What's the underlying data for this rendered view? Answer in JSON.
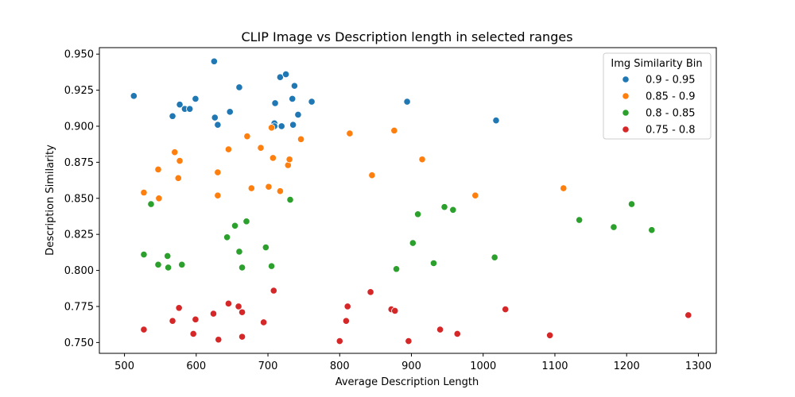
{
  "chart_data": {
    "type": "scatter",
    "title": "CLIP Image vs Description length in selected ranges",
    "xlabel": "Average Description Length",
    "ylabel": "Description Similarity",
    "xlim": [
      465,
      1325
    ],
    "ylim": [
      0.7425,
      0.9545
    ],
    "xticks": [
      500,
      600,
      700,
      800,
      900,
      1000,
      1100,
      1200,
      1300
    ],
    "yticks": [
      0.75,
      0.775,
      0.8,
      0.825,
      0.85,
      0.875,
      0.9,
      0.925,
      0.95
    ],
    "ytick_labels": [
      "0.750",
      "0.775",
      "0.800",
      "0.825",
      "0.850",
      "0.875",
      "0.900",
      "0.925",
      "0.950"
    ],
    "grid": false,
    "legend": {
      "title": "Img Similarity Bin",
      "placement": "top-right"
    },
    "series": [
      {
        "name": "0.9 - 0.95",
        "color": "#1f77b4",
        "points": [
          [
            513,
            0.921
          ],
          [
            567,
            0.907
          ],
          [
            577,
            0.915
          ],
          [
            584,
            0.912
          ],
          [
            591,
            0.912
          ],
          [
            599,
            0.919
          ],
          [
            625,
            0.945
          ],
          [
            626,
            0.906
          ],
          [
            630,
            0.901
          ],
          [
            647,
            0.91
          ],
          [
            660,
            0.927
          ],
          [
            709,
            0.902
          ],
          [
            709,
            0.9
          ],
          [
            710,
            0.916
          ],
          [
            717,
            0.934
          ],
          [
            719,
            0.9
          ],
          [
            725,
            0.936
          ],
          [
            734,
            0.919
          ],
          [
            735,
            0.901
          ],
          [
            737,
            0.928
          ],
          [
            742,
            0.908
          ],
          [
            761,
            0.917
          ],
          [
            894,
            0.917
          ],
          [
            1018,
            0.904
          ]
        ]
      },
      {
        "name": "0.85 - 0.9",
        "color": "#ff7f0e",
        "points": [
          [
            527,
            0.854
          ],
          [
            547,
            0.87
          ],
          [
            548,
            0.85
          ],
          [
            570,
            0.882
          ],
          [
            575,
            0.864
          ],
          [
            577,
            0.876
          ],
          [
            630,
            0.868
          ],
          [
            630,
            0.852
          ],
          [
            645,
            0.884
          ],
          [
            671,
            0.893
          ],
          [
            677,
            0.857
          ],
          [
            690,
            0.885
          ],
          [
            701,
            0.858
          ],
          [
            705,
            0.899
          ],
          [
            707,
            0.878
          ],
          [
            717,
            0.855
          ],
          [
            728,
            0.873
          ],
          [
            730,
            0.877
          ],
          [
            746,
            0.891
          ],
          [
            814,
            0.895
          ],
          [
            845,
            0.866
          ],
          [
            876,
            0.897
          ],
          [
            915,
            0.877
          ],
          [
            989,
            0.852
          ],
          [
            1112,
            0.857
          ]
        ]
      },
      {
        "name": "0.8 - 0.85",
        "color": "#2ca02c",
        "points": [
          [
            527,
            0.811
          ],
          [
            537,
            0.846
          ],
          [
            547,
            0.804
          ],
          [
            560,
            0.81
          ],
          [
            561,
            0.802
          ],
          [
            580,
            0.804
          ],
          [
            643,
            0.823
          ],
          [
            654,
            0.831
          ],
          [
            660,
            0.813
          ],
          [
            664,
            0.802
          ],
          [
            670,
            0.834
          ],
          [
            697,
            0.816
          ],
          [
            705,
            0.803
          ],
          [
            731,
            0.849
          ],
          [
            879,
            0.801
          ],
          [
            902,
            0.819
          ],
          [
            909,
            0.839
          ],
          [
            931,
            0.805
          ],
          [
            946,
            0.844
          ],
          [
            958,
            0.842
          ],
          [
            1016,
            0.809
          ],
          [
            1134,
            0.835
          ],
          [
            1182,
            0.83
          ],
          [
            1207,
            0.846
          ],
          [
            1235,
            0.828
          ]
        ]
      },
      {
        "name": "0.75 - 0.8",
        "color": "#d62728",
        "points": [
          [
            527,
            0.759
          ],
          [
            567,
            0.765
          ],
          [
            576,
            0.774
          ],
          [
            596,
            0.756
          ],
          [
            599,
            0.766
          ],
          [
            624,
            0.77
          ],
          [
            631,
            0.752
          ],
          [
            645,
            0.777
          ],
          [
            659,
            0.775
          ],
          [
            664,
            0.771
          ],
          [
            664,
            0.754
          ],
          [
            694,
            0.764
          ],
          [
            708,
            0.786
          ],
          [
            800,
            0.751
          ],
          [
            809,
            0.765
          ],
          [
            811,
            0.775
          ],
          [
            843,
            0.785
          ],
          [
            872,
            0.773
          ],
          [
            877,
            0.772
          ],
          [
            896,
            0.751
          ],
          [
            940,
            0.759
          ],
          [
            964,
            0.756
          ],
          [
            1031,
            0.773
          ],
          [
            1093,
            0.755
          ],
          [
            1286,
            0.769
          ]
        ]
      }
    ]
  }
}
